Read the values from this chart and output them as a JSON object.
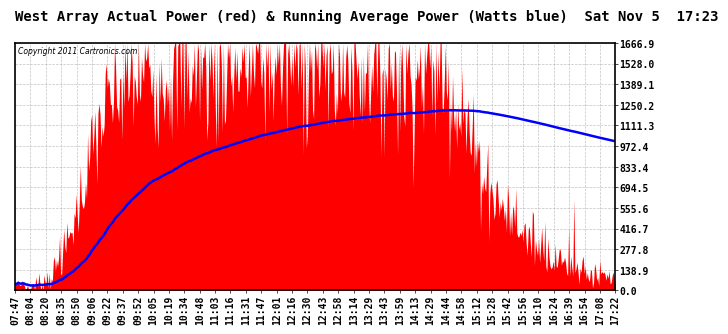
{
  "title": "West Array Actual Power (red) & Running Average Power (Watts blue)  Sat Nov 5  17:23",
  "copyright": "Copyright 2011 Cartronics.com",
  "background_color": "#ffffff",
  "plot_bg_color": "#ffffff",
  "grid_color": "#aaaaaa",
  "yticks": [
    0.0,
    138.9,
    277.8,
    416.7,
    555.6,
    694.5,
    833.4,
    972.4,
    1111.3,
    1250.2,
    1389.1,
    1528.0,
    1666.9
  ],
  "ymax": 1666.9,
  "x_labels": [
    "07:47",
    "08:04",
    "08:20",
    "08:35",
    "08:50",
    "09:06",
    "09:22",
    "09:37",
    "09:52",
    "10:05",
    "10:19",
    "10:34",
    "10:48",
    "11:03",
    "11:16",
    "11:31",
    "11:47",
    "12:01",
    "12:16",
    "12:30",
    "12:43",
    "12:58",
    "13:14",
    "13:29",
    "13:43",
    "13:59",
    "14:13",
    "14:29",
    "14:44",
    "14:58",
    "15:12",
    "15:28",
    "15:42",
    "15:56",
    "16:10",
    "16:24",
    "16:39",
    "16:54",
    "17:08",
    "17:22"
  ],
  "red_fill_color": "#ff0000",
  "blue_line_color": "#0000ff",
  "title_fontsize": 10,
  "tick_fontsize": 7
}
